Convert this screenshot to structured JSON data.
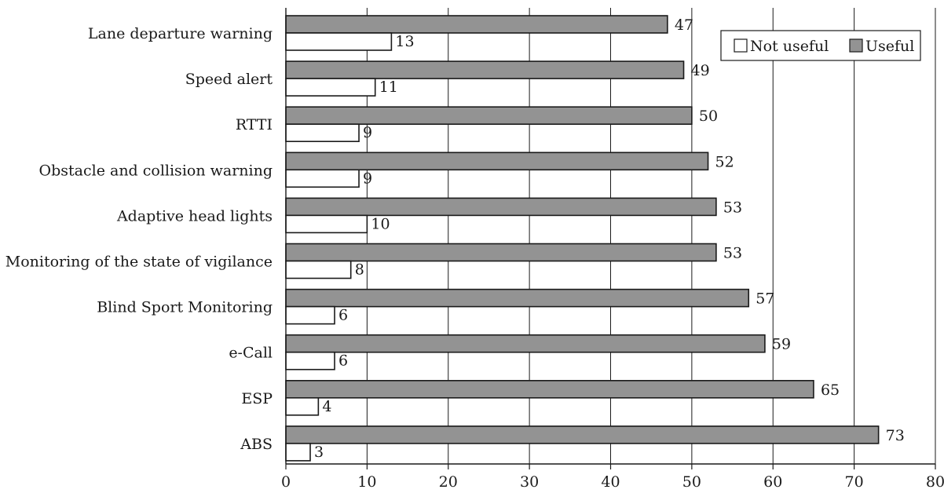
{
  "chart_data": {
    "type": "bar",
    "orientation": "horizontal",
    "categories": [
      "Lane departure warning",
      "Speed alert",
      "RTTI",
      "Obstacle and collision warning",
      "Adaptive head lights",
      "Monitoring of the state of vigilance",
      "Blind Sport Monitoring",
      "e-Call",
      "ESP",
      "ABS"
    ],
    "series": [
      {
        "name": "Useful",
        "values": [
          47,
          49,
          50,
          52,
          53,
          53,
          57,
          59,
          65,
          73
        ]
      },
      {
        "name": "Not useful",
        "values": [
          13,
          11,
          9,
          9,
          10,
          8,
          6,
          6,
          4,
          3
        ]
      }
    ],
    "xlim": [
      0,
      80
    ],
    "xticks": [
      "0",
      "10",
      "20",
      "30",
      "40",
      "50",
      "60",
      "70",
      "80"
    ],
    "grid": "vertical",
    "legend": {
      "position": "top-right",
      "entries": [
        "Not useful",
        "Useful"
      ]
    },
    "colors": {
      "Useful": "#939393",
      "Not useful": "#ffffff",
      "stroke": "#1a1a1a"
    }
  }
}
